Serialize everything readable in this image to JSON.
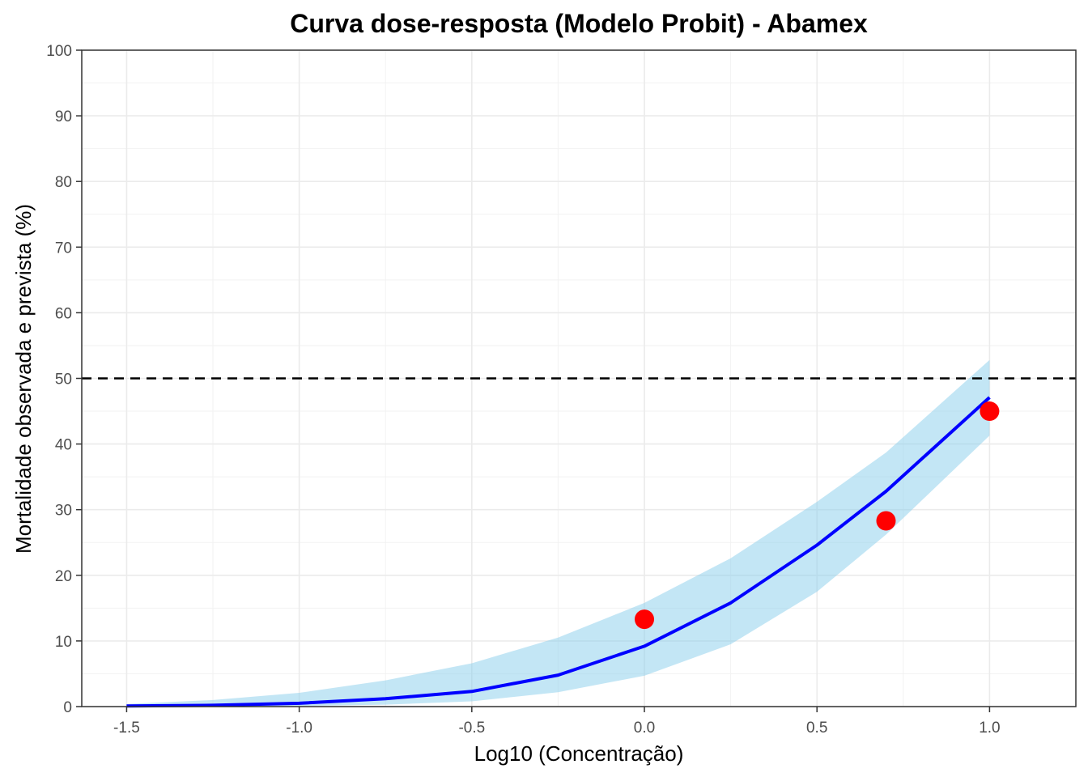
{
  "chart_data": {
    "type": "line",
    "title": "Curva dose-resposta (Modelo Probit) - Abamex",
    "xlabel": "Log10 (Concentração)",
    "ylabel": "Mortalidade observada e prevista (%)",
    "xlim": [
      -1.63,
      1.25
    ],
    "ylim": [
      0,
      100
    ],
    "x_ticks": [
      "-1.5",
      "-1.0",
      "-0.5",
      "0.0",
      "0.5",
      "1.0"
    ],
    "y_ticks": [
      "0",
      "10",
      "20",
      "30",
      "40",
      "50",
      "60",
      "70",
      "80",
      "90",
      "100"
    ],
    "grid": true,
    "reference_line": {
      "y": 50,
      "style": "dashed",
      "color": "#000000"
    },
    "fitted_curve": {
      "color": "#0000ff",
      "x": [
        -1.5,
        -1.25,
        -1.0,
        -0.75,
        -0.5,
        -0.25,
        0.0,
        0.25,
        0.5,
        0.7,
        1.0
      ],
      "y": [
        0.1,
        0.2,
        0.5,
        1.2,
        2.3,
        4.8,
        9.2,
        15.8,
        24.6,
        32.8,
        47.1
      ]
    },
    "confidence_band": {
      "color": "#87ceeb",
      "x": [
        -1.5,
        -1.25,
        -1.0,
        -0.75,
        -0.5,
        -0.25,
        0.0,
        0.25,
        0.5,
        0.7,
        1.0
      ],
      "lower": [
        0.0,
        0.05,
        0.1,
        0.3,
        0.8,
        2.2,
        4.7,
        9.5,
        17.5,
        26.2,
        41.3
      ],
      "upper": [
        0.4,
        1.0,
        2.1,
        4.0,
        6.6,
        10.5,
        15.8,
        22.6,
        31.2,
        38.7,
        52.8
      ]
    },
    "observed_points": {
      "color": "#ff0000",
      "x": [
        0.0,
        0.7,
        1.0
      ],
      "y": [
        13.3,
        28.3,
        45.0
      ]
    }
  }
}
